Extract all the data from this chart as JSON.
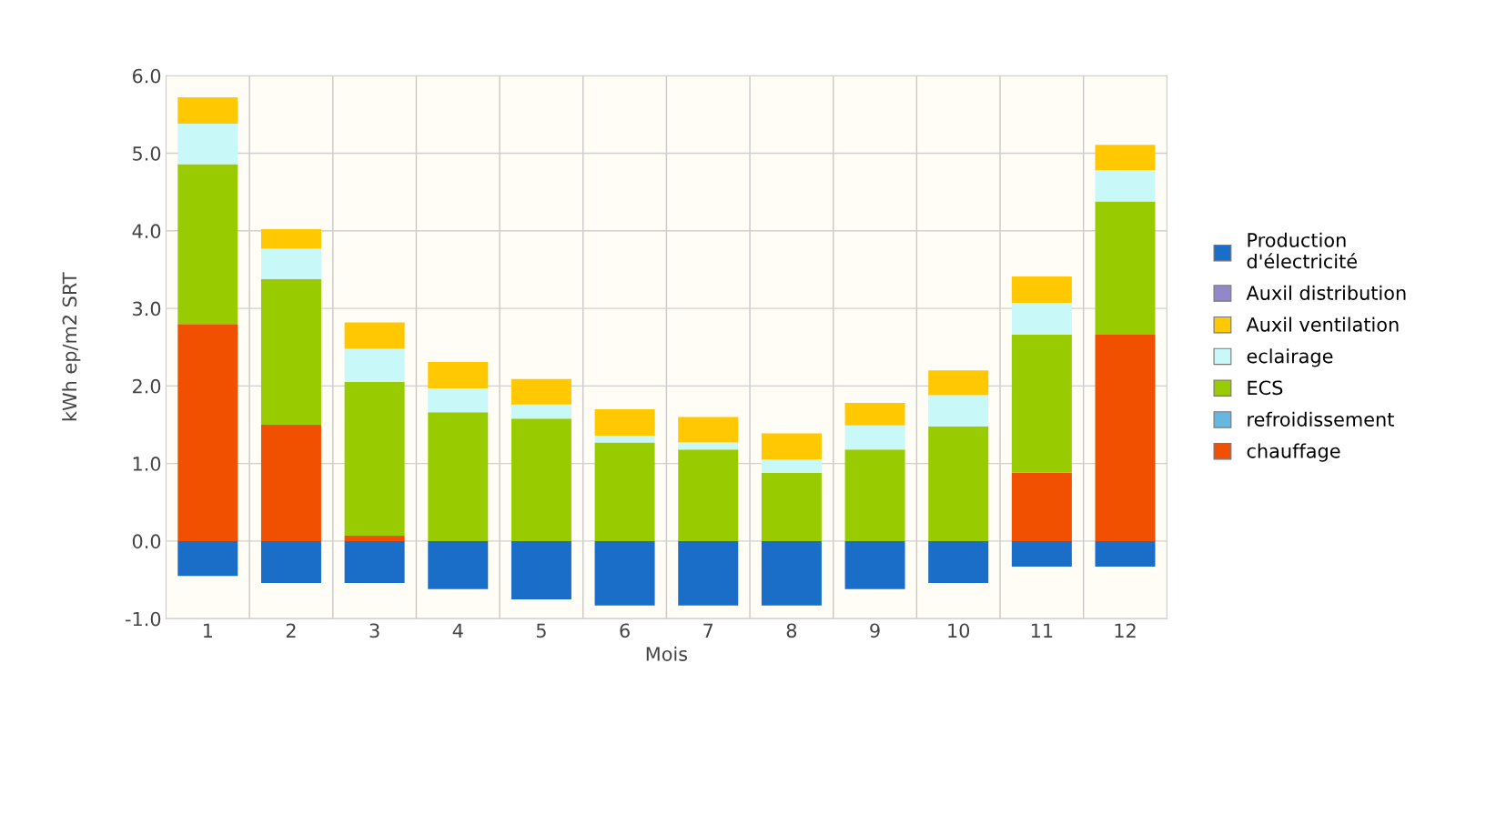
{
  "chart_data": {
    "type": "bar",
    "stacked": true,
    "xlabel": "Mois",
    "ylabel": "kWh ep/m2 SRT",
    "categories": [
      "1",
      "2",
      "3",
      "4",
      "5",
      "6",
      "7",
      "8",
      "9",
      "10",
      "11",
      "12"
    ],
    "series": [
      {
        "name": "chauffage",
        "color": "#f05000",
        "values": [
          2.8,
          1.5,
          0.07,
          0,
          0,
          0,
          0,
          0,
          0,
          0,
          0.88,
          2.66
        ]
      },
      {
        "name": "refroidissement",
        "color": "#66b8e0",
        "values": [
          0,
          0,
          0,
          0,
          0,
          0,
          0,
          0,
          0,
          0,
          0,
          0
        ]
      },
      {
        "name": "ECS",
        "color": "#99cc00",
        "values": [
          2.06,
          1.88,
          1.98,
          1.66,
          1.58,
          1.27,
          1.18,
          0.88,
          1.18,
          1.48,
          1.78,
          1.72
        ]
      },
      {
        "name": "eclairage",
        "color": "#c8f8f8",
        "values": [
          0.52,
          0.39,
          0.43,
          0.31,
          0.18,
          0.09,
          0.09,
          0.17,
          0.31,
          0.4,
          0.41,
          0.4
        ]
      },
      {
        "name": "Auxil ventilation",
        "color": "#ffc800",
        "values": [
          0.34,
          0.25,
          0.34,
          0.34,
          0.33,
          0.34,
          0.33,
          0.34,
          0.29,
          0.32,
          0.34,
          0.33
        ]
      },
      {
        "name": "Auxil distribution",
        "color": "#9088c8",
        "values": [
          0,
          0,
          0,
          0,
          0,
          0,
          0,
          0,
          0,
          0,
          0,
          0
        ]
      },
      {
        "name": "Production\nd'électricité",
        "color": "#1a6ec8",
        "values": [
          -0.45,
          -0.54,
          -0.54,
          -0.62,
          -0.75,
          -0.83,
          -0.83,
          -0.83,
          -0.62,
          -0.54,
          -0.33,
          -0.33
        ]
      }
    ],
    "ylim": [
      -1.0,
      6.0
    ],
    "yticks": [
      {
        "value": -1,
        "label": "-1.0"
      },
      {
        "value": 0,
        "label": "0.0"
      },
      {
        "value": 1,
        "label": "1.0"
      },
      {
        "value": 2,
        "label": "2.0"
      },
      {
        "value": 3,
        "label": "3.0"
      },
      {
        "value": 4,
        "label": "4.0"
      },
      {
        "value": 5,
        "label": "5.0"
      },
      {
        "value": 6,
        "label": "6.0"
      }
    ],
    "grid": true,
    "legend": "right"
  }
}
